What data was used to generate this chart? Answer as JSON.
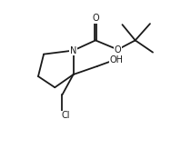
{
  "bg_color": "#ffffff",
  "line_color": "#1a1a1a",
  "line_width": 1.3,
  "font_size": 7.0,
  "fig_width": 2.1,
  "fig_height": 1.64,
  "dpi": 100,
  "xlim": [
    0,
    10
  ],
  "ylim": [
    0,
    8
  ]
}
